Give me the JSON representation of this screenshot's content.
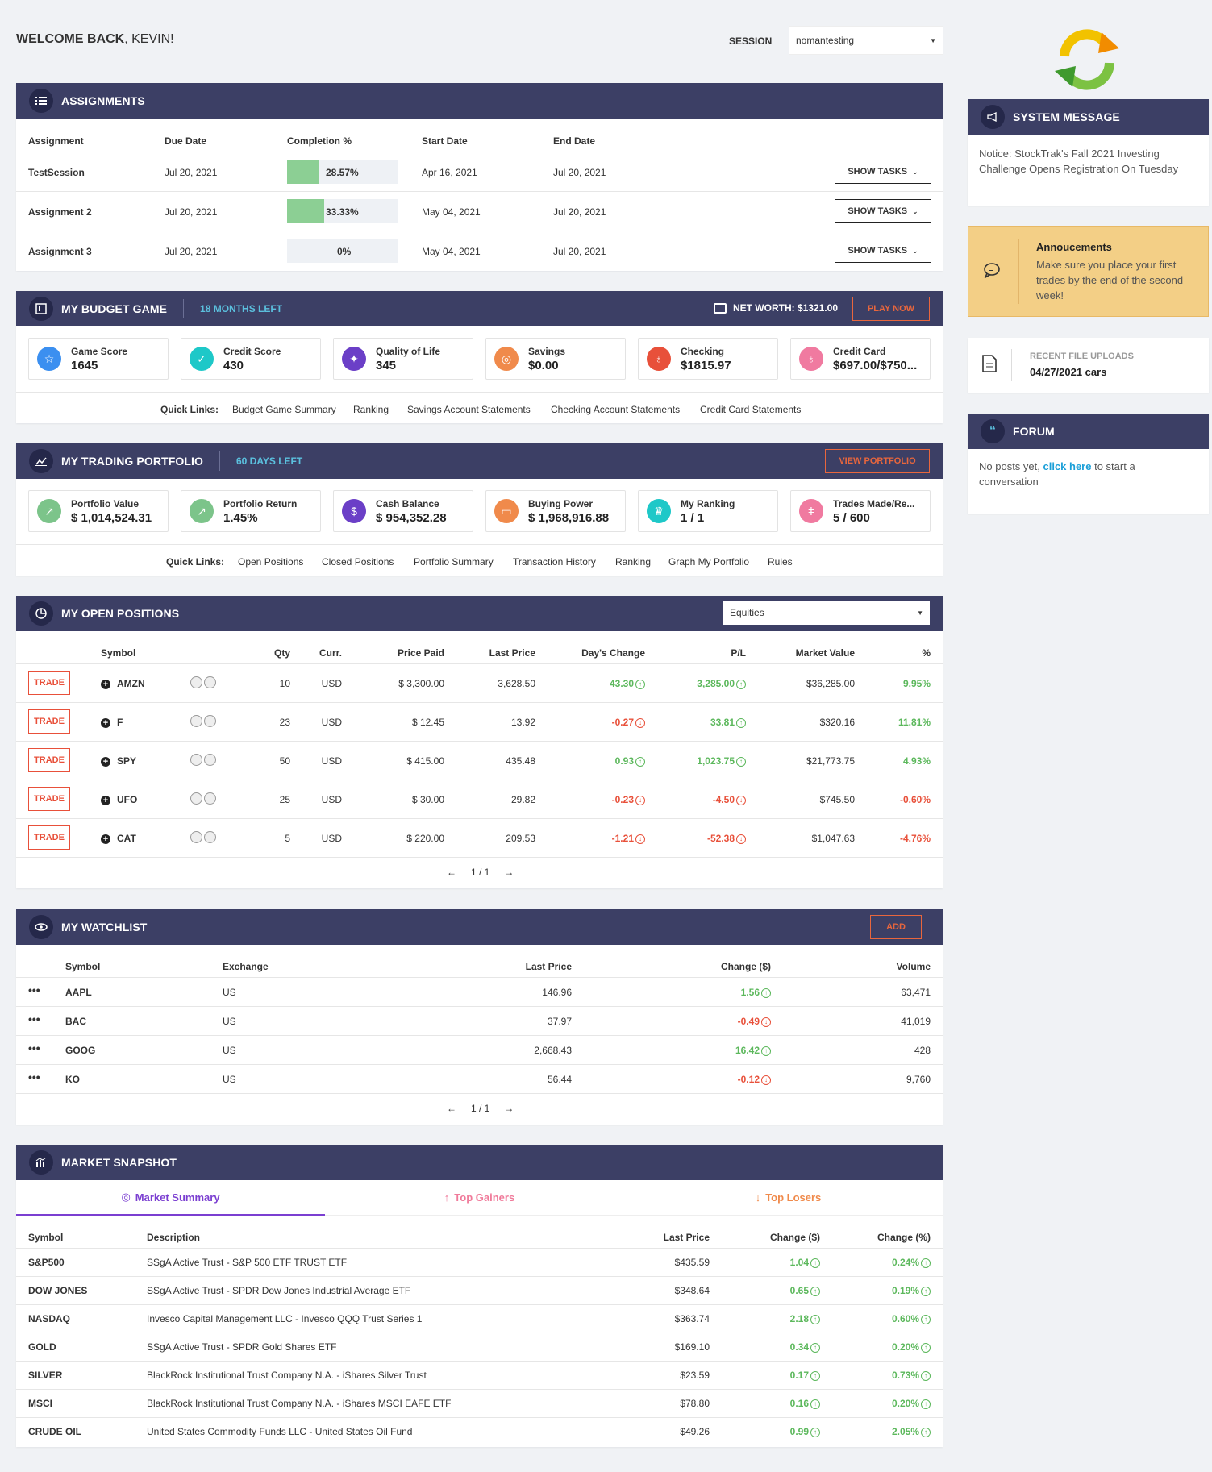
{
  "welcome": {
    "prefix": "WELCOME BACK",
    "name": ", KEVIN!"
  },
  "session": {
    "label": "SESSION",
    "value": "nomantesting"
  },
  "assignments": {
    "title": "ASSIGNMENTS",
    "columns": [
      "Assignment",
      "Due Date",
      "Completion %",
      "Start Date",
      "End Date"
    ],
    "rows": [
      {
        "name": "TestSession",
        "due": "Jul 20, 2021",
        "completion": "28.57%",
        "progress": 0.2857,
        "start": "Apr 16, 2021",
        "end": "Jul 20, 2021",
        "button": "SHOW TASKS"
      },
      {
        "name": "Assignment 2",
        "due": "Jul 20, 2021",
        "completion": "33.33%",
        "progress": 0.3333,
        "start": "May 04, 2021",
        "end": "Jul 20, 2021",
        "button": "SHOW TASKS"
      },
      {
        "name": "Assignment 3",
        "due": "Jul 20, 2021",
        "completion": "0%",
        "progress": 0,
        "start": "May 04, 2021",
        "end": "Jul 20, 2021",
        "button": "SHOW TASKS"
      }
    ]
  },
  "budget": {
    "title": "MY BUDGET GAME",
    "months_left": "18 MONTHS LEFT",
    "net_worth": "NET WORTH: $1321.00",
    "play": "PLAY NOW",
    "stats": [
      {
        "label": "Game Score",
        "value": "1645",
        "color": "#3b8ff0",
        "icon": "star-icon"
      },
      {
        "label": "Credit Score",
        "value": "430",
        "color": "#1ec8c8",
        "icon": "check-icon"
      },
      {
        "label": "Quality of Life",
        "value": "345",
        "color": "#6b3fc7",
        "icon": "sparkle-icon"
      },
      {
        "label": "Savings",
        "value": "$0.00",
        "color": "#f08a4b",
        "icon": "coins-icon"
      },
      {
        "label": "Checking",
        "value": "$1815.97",
        "color": "#e8503a",
        "icon": "money-bag-icon"
      },
      {
        "label": "Credit Card",
        "value": "$697.00/$750...",
        "color": "#f07aa0",
        "icon": "wallet-icon"
      }
    ],
    "quick_label": "Quick Links:",
    "links": [
      "Budget Game Summary",
      "Ranking",
      "Savings Account Statements",
      "Checking Account Statements",
      "Credit Card Statements"
    ]
  },
  "trading": {
    "title": "MY TRADING PORTFOLIO",
    "days_left": "60 DAYS LEFT",
    "view": "VIEW PORTFOLIO",
    "stats": [
      {
        "label": "Portfolio Value",
        "value": "$ 1,014,524.31",
        "color": "#7cc48a",
        "icon": "arrow-up-right-icon"
      },
      {
        "label": "Portfolio Return",
        "value": "1.45%",
        "color": "#7cc48a",
        "icon": "arrow-up-right-icon"
      },
      {
        "label": "Cash Balance",
        "value": "$ 954,352.28",
        "color": "#6b3fc7",
        "icon": "dollar-icon"
      },
      {
        "label": "Buying Power",
        "value": "$ 1,968,916.88",
        "color": "#f08a4b",
        "icon": "card-icon"
      },
      {
        "label": "My Ranking",
        "value": "1 / 1",
        "color": "#1ec8c8",
        "icon": "trophy-icon"
      },
      {
        "label": "Trades Made/Re...",
        "value": "5 / 600",
        "color": "#f07aa0",
        "icon": "tally-icon"
      }
    ],
    "quick_label": "Quick Links:",
    "links": [
      "Open Positions",
      "Closed Positions",
      "Portfolio Summary",
      "Transaction History",
      "Ranking",
      "Graph My Portfolio",
      "Rules"
    ]
  },
  "positions": {
    "title": "MY OPEN POSITIONS",
    "filter": "Equities",
    "columns": [
      "Symbol",
      "Qty",
      "Curr.",
      "Price Paid",
      "Last Price",
      "Day's Change",
      "P/L",
      "Market Value",
      "%"
    ],
    "trade_label": "TRADE",
    "rows": [
      {
        "symbol": "AMZN",
        "qty": "10",
        "curr": "USD",
        "paid": "$ 3,300.00",
        "last": "3,628.50",
        "day": "43.30",
        "day_dir": "up",
        "pl": "3,285.00",
        "pl_dir": "up",
        "mv": "$36,285.00",
        "pct": "9.95%",
        "pct_dir": "up"
      },
      {
        "symbol": "F",
        "qty": "23",
        "curr": "USD",
        "paid": "$ 12.45",
        "last": "13.92",
        "day": "-0.27",
        "day_dir": "down",
        "pl": "33.81",
        "pl_dir": "up",
        "mv": "$320.16",
        "pct": "11.81%",
        "pct_dir": "up"
      },
      {
        "symbol": "SPY",
        "qty": "50",
        "curr": "USD",
        "paid": "$ 415.00",
        "last": "435.48",
        "day": "0.93",
        "day_dir": "up",
        "pl": "1,023.75",
        "pl_dir": "up",
        "mv": "$21,773.75",
        "pct": "4.93%",
        "pct_dir": "up"
      },
      {
        "symbol": "UFO",
        "qty": "25",
        "curr": "USD",
        "paid": "$ 30.00",
        "last": "29.82",
        "day": "-0.23",
        "day_dir": "down",
        "pl": "-4.50",
        "pl_dir": "down",
        "mv": "$745.50",
        "pct": "-0.60%",
        "pct_dir": "down"
      },
      {
        "symbol": "CAT",
        "qty": "5",
        "curr": "USD",
        "paid": "$ 220.00",
        "last": "209.53",
        "day": "-1.21",
        "day_dir": "down",
        "pl": "-52.38",
        "pl_dir": "down",
        "mv": "$1,047.63",
        "pct": "-4.76%",
        "pct_dir": "down"
      }
    ],
    "pager": "1 / 1"
  },
  "watchlist": {
    "title": "MY WATCHLIST",
    "add": "ADD",
    "columns": [
      "Symbol",
      "Exchange",
      "Last Price",
      "Change ($)",
      "Volume"
    ],
    "rows": [
      {
        "symbol": "AAPL",
        "exchange": "US",
        "last": "146.96",
        "change": "1.56",
        "dir": "up",
        "volume": "63,471"
      },
      {
        "symbol": "BAC",
        "exchange": "US",
        "last": "37.97",
        "change": "-0.49",
        "dir": "down",
        "volume": "41,019"
      },
      {
        "symbol": "GOOG",
        "exchange": "US",
        "last": "2,668.43",
        "change": "16.42",
        "dir": "up",
        "volume": "428"
      },
      {
        "symbol": "KO",
        "exchange": "US",
        "last": "56.44",
        "change": "-0.12",
        "dir": "down",
        "volume": "9,760"
      }
    ],
    "pager": "1 / 1"
  },
  "market": {
    "title": "MARKET SNAPSHOT",
    "tabs": [
      "Market Summary",
      "Top Gainers",
      "Top Losers"
    ],
    "columns": [
      "Symbol",
      "Description",
      "Last Price",
      "Change ($)",
      "Change (%)"
    ],
    "rows": [
      {
        "symbol": "S&P500",
        "desc": "SSgA Active Trust - S&P 500 ETF TRUST ETF",
        "last": "$435.59",
        "chg": "1.04",
        "pct": "0.24%"
      },
      {
        "symbol": "DOW JONES",
        "desc": "SSgA Active Trust - SPDR Dow Jones Industrial Average ETF",
        "last": "$348.64",
        "chg": "0.65",
        "pct": "0.19%"
      },
      {
        "symbol": "NASDAQ",
        "desc": "Invesco Capital Management LLC - Invesco QQQ Trust Series 1",
        "last": "$363.74",
        "chg": "2.18",
        "pct": "0.60%"
      },
      {
        "symbol": "GOLD",
        "desc": "SSgA Active Trust - SPDR Gold Shares ETF",
        "last": "$169.10",
        "chg": "0.34",
        "pct": "0.20%"
      },
      {
        "symbol": "SILVER",
        "desc": "BlackRock Institutional Trust Company N.A. - iShares Silver Trust",
        "last": "$23.59",
        "chg": "0.17",
        "pct": "0.73%"
      },
      {
        "symbol": "MSCI",
        "desc": "BlackRock Institutional Trust Company N.A. - iShares MSCI EAFE ETF",
        "last": "$78.80",
        "chg": "0.16",
        "pct": "0.20%"
      },
      {
        "symbol": "CRUDE OIL",
        "desc": "United States Commodity Funds LLC - United States Oil Fund",
        "last": "$49.26",
        "chg": "0.99",
        "pct": "2.05%"
      }
    ]
  },
  "system": {
    "title": "SYSTEM MESSAGE",
    "text": "Notice: StockTrak's Fall 2021 Investing Challenge Opens Registration On Tuesday"
  },
  "announcements": {
    "title": "Annoucements",
    "text": "Make sure you place your first trades by the end of the second week!"
  },
  "uploads": {
    "label": "RECENT FILE UPLOADS",
    "value": "04/27/2021 cars"
  },
  "forum": {
    "title": "FORUM",
    "text_before": "No posts yet, ",
    "link": "click here",
    "text_after": " to start a conversation"
  },
  "colors": {
    "header": "#3c3f65",
    "accent_blue": "#5bc0de",
    "accent_orange": "#e8663d",
    "positive": "#5cb85c",
    "negative": "#e8503a",
    "announce_bg": "#f3cf86"
  }
}
